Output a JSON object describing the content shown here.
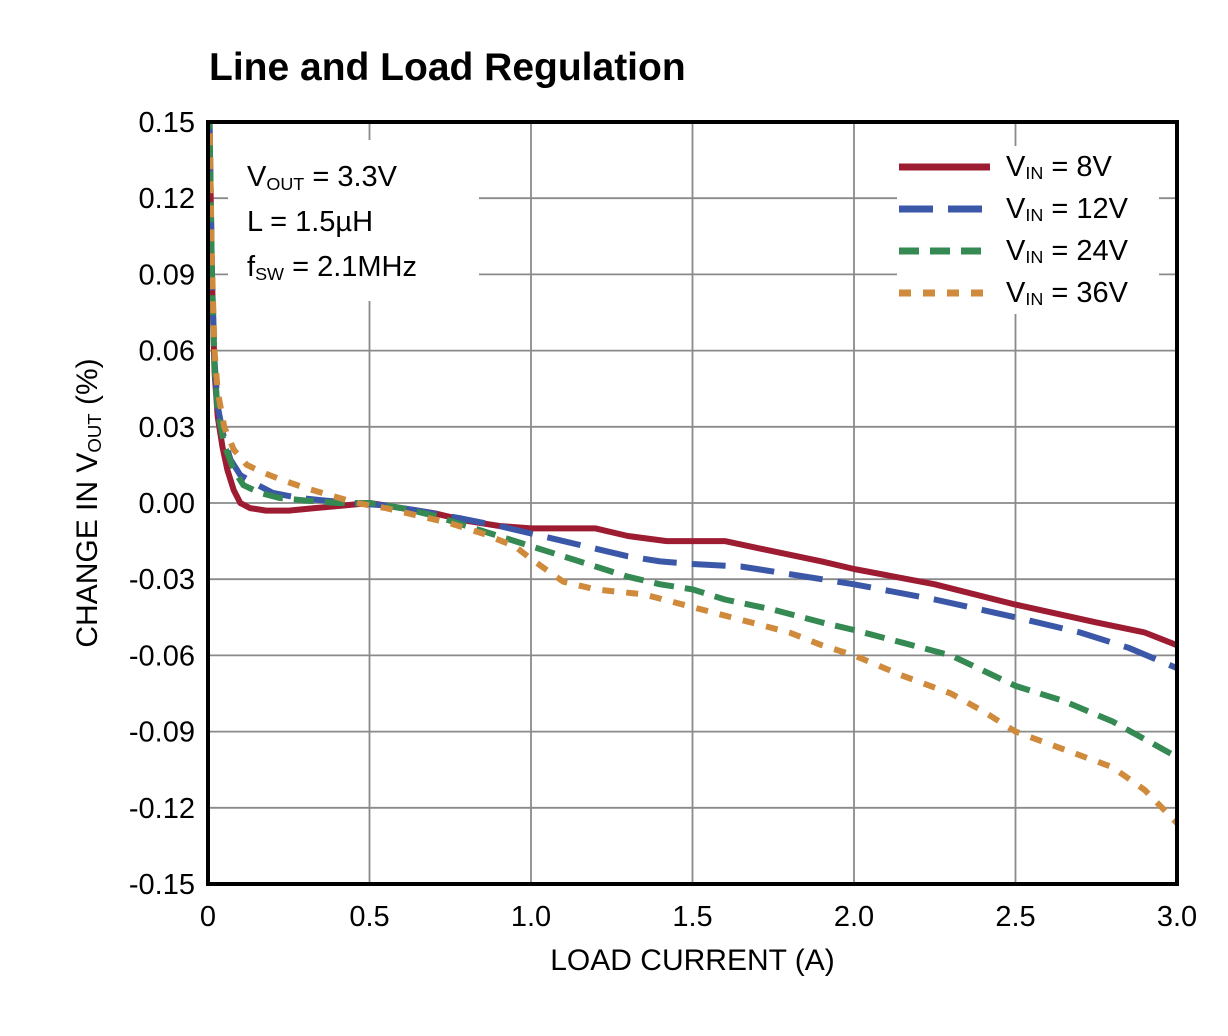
{
  "title": "Line and Load Regulation",
  "annotation": {
    "lines": [
      {
        "pre": "V",
        "sub": "OUT",
        "post": " = 3.3V"
      },
      {
        "pre": "L = 1.5µH",
        "sub": "",
        "post": ""
      },
      {
        "pre": "f",
        "sub": "SW",
        "post": " = 2.1MHz"
      }
    ]
  },
  "axes": {
    "x_label": "LOAD CURRENT (A)",
    "y_label": {
      "pre": "CHANGE IN V",
      "sub": "OUT",
      "post": " (%)"
    }
  },
  "legend": {
    "items": [
      {
        "pre": "V",
        "sub": "IN",
        "post": " = 8V"
      },
      {
        "pre": "V",
        "sub": "IN",
        "post": " = 12V"
      },
      {
        "pre": "V",
        "sub": "IN",
        "post": " = 24V"
      },
      {
        "pre": "V",
        "sub": "IN",
        "post": " = 36V"
      }
    ]
  },
  "colors": {
    "background": "#ffffff",
    "grid": "#8a8a8a",
    "border": "#000000",
    "text": "#000000"
  },
  "chart_data": {
    "type": "line",
    "title": "Line and Load Regulation",
    "xlabel": "LOAD CURRENT (A)",
    "ylabel": "CHANGE IN VOUT (%)",
    "xlim": [
      0,
      3.0
    ],
    "ylim": [
      -0.15,
      0.15
    ],
    "grid": true,
    "legend_position": "top-right",
    "annotations": [
      "VOUT = 3.3V",
      "L = 1.5µH",
      "fSW = 2.1MHz"
    ],
    "x_ticks": [
      {
        "v": 0,
        "label": "0"
      },
      {
        "v": 0.5,
        "label": "0.5"
      },
      {
        "v": 1.0,
        "label": "1.0"
      },
      {
        "v": 1.5,
        "label": "1.5"
      },
      {
        "v": 2.0,
        "label": "2.0"
      },
      {
        "v": 2.5,
        "label": "2.5"
      },
      {
        "v": 3.0,
        "label": "3.0"
      }
    ],
    "y_ticks": [
      {
        "v": 0.15,
        "label": "0.15"
      },
      {
        "v": 0.12,
        "label": "0.12"
      },
      {
        "v": 0.09,
        "label": "0.09"
      },
      {
        "v": 0.06,
        "label": "0.06"
      },
      {
        "v": 0.03,
        "label": "0.03"
      },
      {
        "v": 0.0,
        "label": "0.00"
      },
      {
        "v": -0.03,
        "label": "-0.03"
      },
      {
        "v": -0.06,
        "label": "-0.06"
      },
      {
        "v": -0.09,
        "label": "-0.09"
      },
      {
        "v": -0.12,
        "label": "-0.12"
      },
      {
        "v": -0.15,
        "label": "-0.15"
      }
    ],
    "series": [
      {
        "name": "VIN = 8V",
        "color": "#9d1c31",
        "dash": null,
        "points": [
          [
            0.004,
            0.155
          ],
          [
            0.012,
            0.09
          ],
          [
            0.02,
            0.052
          ],
          [
            0.03,
            0.034
          ],
          [
            0.045,
            0.022
          ],
          [
            0.06,
            0.013
          ],
          [
            0.08,
            0.005
          ],
          [
            0.1,
            0.0
          ],
          [
            0.13,
            -0.002
          ],
          [
            0.18,
            -0.003
          ],
          [
            0.25,
            -0.003
          ],
          [
            0.33,
            -0.002
          ],
          [
            0.42,
            -0.001
          ],
          [
            0.5,
            0.0
          ],
          [
            0.6,
            -0.002
          ],
          [
            0.7,
            -0.004
          ],
          [
            0.8,
            -0.007
          ],
          [
            0.9,
            -0.009
          ],
          [
            1.0,
            -0.01
          ],
          [
            1.2,
            -0.01
          ],
          [
            1.3,
            -0.013
          ],
          [
            1.42,
            -0.015
          ],
          [
            1.6,
            -0.015
          ],
          [
            1.75,
            -0.019
          ],
          [
            1.9,
            -0.023
          ],
          [
            2.0,
            -0.026
          ],
          [
            2.25,
            -0.032
          ],
          [
            2.5,
            -0.04
          ],
          [
            2.75,
            -0.047
          ],
          [
            2.9,
            -0.051
          ],
          [
            3.0,
            -0.056
          ]
        ]
      },
      {
        "name": "VIN = 12V",
        "color": "#3b57a8",
        "dash": "34 15",
        "points": [
          [
            0.004,
            0.155
          ],
          [
            0.012,
            0.092
          ],
          [
            0.02,
            0.056
          ],
          [
            0.03,
            0.038
          ],
          [
            0.05,
            0.025
          ],
          [
            0.07,
            0.017
          ],
          [
            0.1,
            0.011
          ],
          [
            0.14,
            0.008
          ],
          [
            0.2,
            0.004
          ],
          [
            0.28,
            0.002
          ],
          [
            0.36,
            0.001
          ],
          [
            0.45,
            0.0
          ],
          [
            0.55,
            -0.001
          ],
          [
            0.65,
            -0.003
          ],
          [
            0.78,
            -0.006
          ],
          [
            0.9,
            -0.009
          ],
          [
            1.0,
            -0.012
          ],
          [
            1.1,
            -0.015
          ],
          [
            1.2,
            -0.018
          ],
          [
            1.3,
            -0.021
          ],
          [
            1.4,
            -0.023
          ],
          [
            1.5,
            -0.024
          ],
          [
            1.65,
            -0.025
          ],
          [
            1.8,
            -0.028
          ],
          [
            1.9,
            -0.03
          ],
          [
            2.0,
            -0.032
          ],
          [
            2.25,
            -0.038
          ],
          [
            2.5,
            -0.045
          ],
          [
            2.7,
            -0.051
          ],
          [
            2.85,
            -0.057
          ],
          [
            3.0,
            -0.065
          ]
        ]
      },
      {
        "name": "VIN = 24V",
        "color": "#348a52",
        "dash": "20 11",
        "points": [
          [
            0.004,
            0.155
          ],
          [
            0.012,
            0.091
          ],
          [
            0.02,
            0.054
          ],
          [
            0.03,
            0.036
          ],
          [
            0.05,
            0.023
          ],
          [
            0.08,
            0.013
          ],
          [
            0.11,
            0.007
          ],
          [
            0.16,
            0.004
          ],
          [
            0.22,
            0.002
          ],
          [
            0.3,
            0.001
          ],
          [
            0.4,
            0.0
          ],
          [
            0.5,
            0.0
          ],
          [
            0.6,
            -0.002
          ],
          [
            0.7,
            -0.005
          ],
          [
            0.8,
            -0.009
          ],
          [
            0.9,
            -0.013
          ],
          [
            1.0,
            -0.017
          ],
          [
            1.1,
            -0.021
          ],
          [
            1.2,
            -0.025
          ],
          [
            1.3,
            -0.029
          ],
          [
            1.4,
            -0.032
          ],
          [
            1.5,
            -0.034
          ],
          [
            1.6,
            -0.038
          ],
          [
            1.75,
            -0.042
          ],
          [
            1.9,
            -0.047
          ],
          [
            2.0,
            -0.05
          ],
          [
            2.15,
            -0.055
          ],
          [
            2.3,
            -0.06
          ],
          [
            2.4,
            -0.066
          ],
          [
            2.5,
            -0.072
          ],
          [
            2.65,
            -0.078
          ],
          [
            2.8,
            -0.086
          ],
          [
            2.9,
            -0.093
          ],
          [
            3.0,
            -0.1
          ]
        ]
      },
      {
        "name": "VIN = 36V",
        "color": "#cf8a3c",
        "dash": "12 12",
        "points": [
          [
            0.004,
            0.155
          ],
          [
            0.012,
            0.095
          ],
          [
            0.02,
            0.06
          ],
          [
            0.03,
            0.044
          ],
          [
            0.05,
            0.03
          ],
          [
            0.08,
            0.021
          ],
          [
            0.12,
            0.015
          ],
          [
            0.17,
            0.012
          ],
          [
            0.23,
            0.009
          ],
          [
            0.3,
            0.006
          ],
          [
            0.38,
            0.003
          ],
          [
            0.46,
            0.0
          ],
          [
            0.55,
            -0.002
          ],
          [
            0.65,
            -0.005
          ],
          [
            0.75,
            -0.008
          ],
          [
            0.85,
            -0.012
          ],
          [
            0.95,
            -0.017
          ],
          [
            1.0,
            -0.022
          ],
          [
            1.1,
            -0.031
          ],
          [
            1.2,
            -0.034
          ],
          [
            1.35,
            -0.036
          ],
          [
            1.5,
            -0.041
          ],
          [
            1.65,
            -0.046
          ],
          [
            1.8,
            -0.051
          ],
          [
            1.9,
            -0.056
          ],
          [
            2.0,
            -0.06
          ],
          [
            2.15,
            -0.068
          ],
          [
            2.3,
            -0.075
          ],
          [
            2.4,
            -0.082
          ],
          [
            2.5,
            -0.09
          ],
          [
            2.65,
            -0.097
          ],
          [
            2.8,
            -0.104
          ],
          [
            2.9,
            -0.113
          ],
          [
            3.0,
            -0.126
          ]
        ]
      }
    ]
  }
}
